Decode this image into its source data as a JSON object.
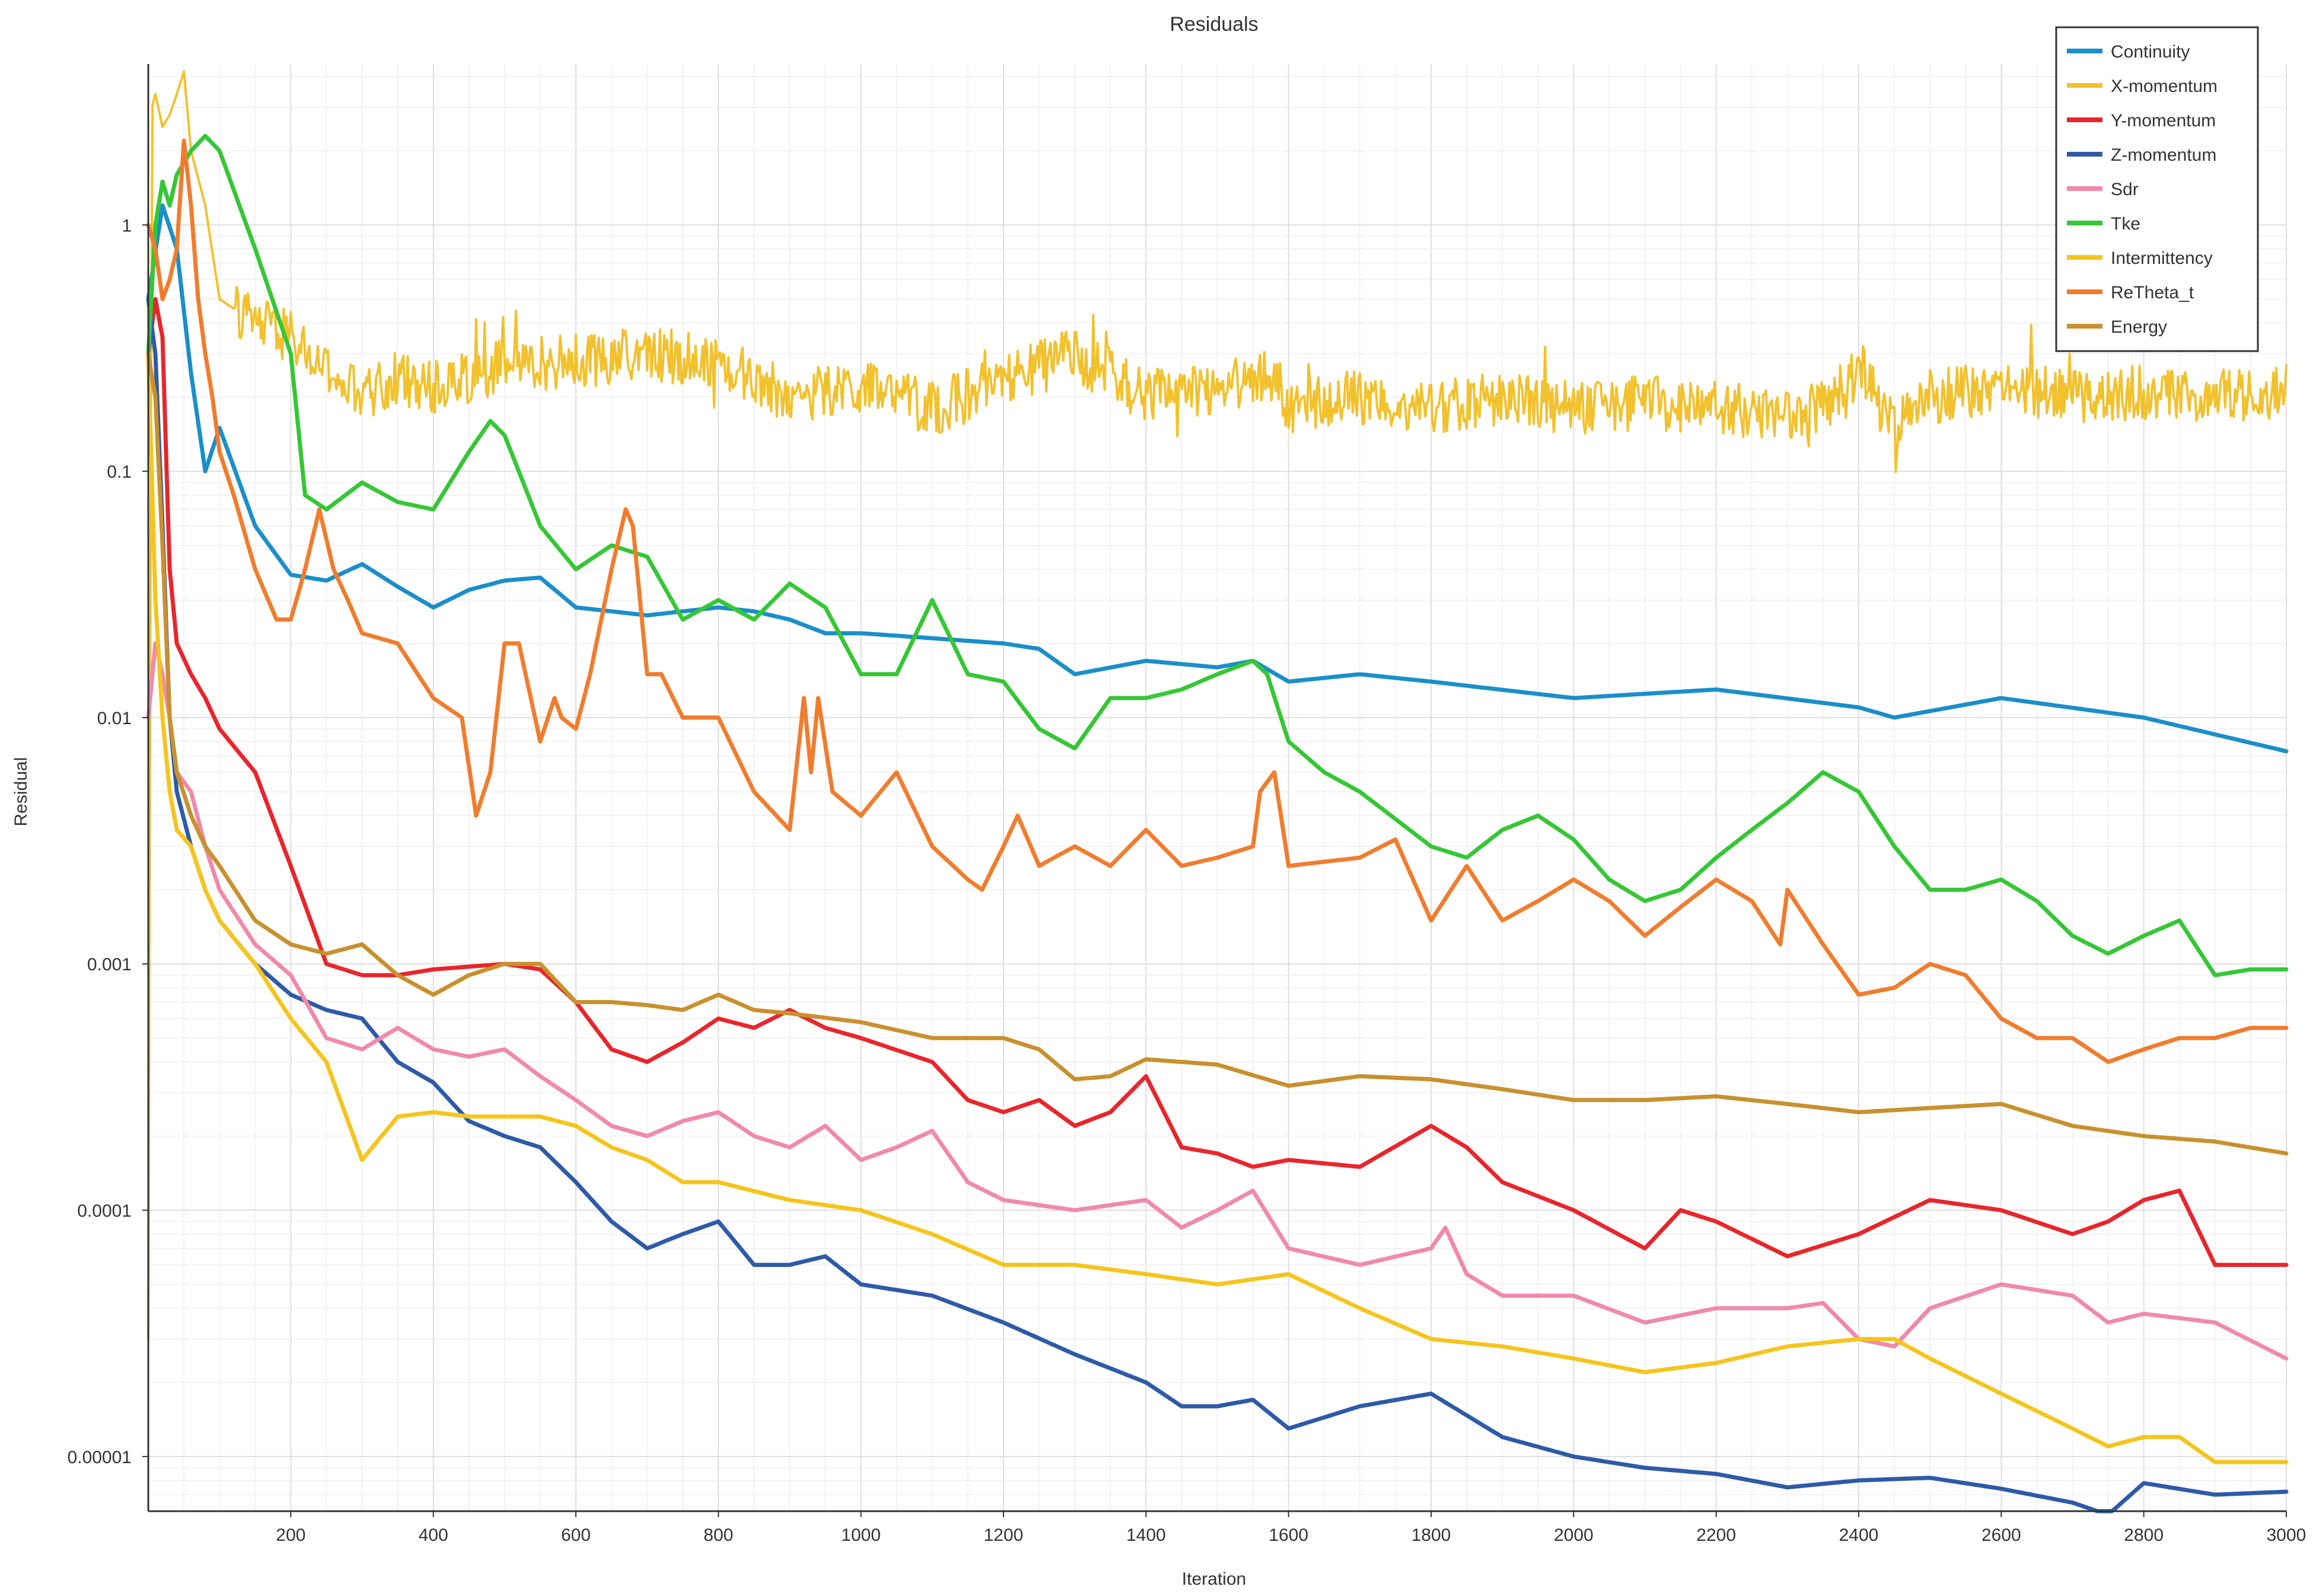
{
  "chart_data": {
    "type": "line",
    "title": "Residuals",
    "xlabel": "Iteration",
    "ylabel": "Residual",
    "xlim": [
      0,
      3000
    ],
    "ylim": [
      6e-06,
      4.5
    ],
    "yscale": "log",
    "grid": true,
    "legend_position": "top-right",
    "x_ticks": [
      200,
      400,
      600,
      800,
      1000,
      1200,
      1400,
      1600,
      1800,
      2000,
      2200,
      2400,
      2600,
      2800,
      3000
    ],
    "x_tick_labels": [
      "200",
      "400",
      "600",
      "800",
      "1000",
      "1200",
      "1400",
      "1600",
      "1800",
      "2000",
      "2200",
      "2400",
      "2600",
      "2800",
      "3000"
    ],
    "y_ticks": [
      1,
      0.1,
      0.01,
      0.001,
      0.0001,
      1e-05
    ],
    "y_tick_labels": [
      "1",
      "0.1",
      "0.01",
      "0.001",
      "0.0001",
      "0.00001"
    ],
    "series": [
      {
        "name": "Continuity",
        "color": "#1a8fc9",
        "x": [
          0,
          20,
          40,
          60,
          80,
          100,
          150,
          200,
          250,
          300,
          350,
          400,
          450,
          500,
          550,
          600,
          650,
          700,
          750,
          800,
          850,
          900,
          950,
          1000,
          1100,
          1200,
          1250,
          1300,
          1400,
          1500,
          1550,
          1600,
          1700,
          1800,
          2000,
          2200,
          2400,
          2450,
          2600,
          2800,
          3000
        ],
        "values": [
          0.5,
          1.2,
          0.8,
          0.25,
          0.1,
          0.15,
          0.06,
          0.038,
          0.036,
          0.042,
          0.034,
          0.028,
          0.033,
          0.036,
          0.037,
          0.028,
          0.027,
          0.026,
          0.027,
          0.028,
          0.027,
          0.025,
          0.022,
          0.022,
          0.021,
          0.02,
          0.019,
          0.015,
          0.017,
          0.016,
          0.017,
          0.014,
          0.015,
          0.014,
          0.012,
          0.013,
          0.011,
          0.01,
          0.012,
          0.01,
          0.0073
        ]
      },
      {
        "name": "X-momentum",
        "color": "#f2c12e",
        "noise": 0.22,
        "x": [
          0,
          5,
          10,
          20,
          30,
          40,
          50,
          60,
          80,
          100,
          150,
          200,
          250,
          300,
          350,
          400,
          500,
          600,
          700,
          800,
          900,
          1000,
          1100,
          1200,
          1300,
          1400,
          1500,
          1580,
          1600,
          1700,
          1800,
          1900,
          2000,
          2100,
          2200,
          2300,
          2380,
          2400,
          2450,
          2500,
          2600,
          2700,
          2800,
          2900,
          3000
        ],
        "values": [
          3e-05,
          3,
          3.4,
          2.5,
          2.8,
          3.4,
          4.2,
          2,
          1.2,
          0.5,
          0.4,
          0.35,
          0.25,
          0.2,
          0.24,
          0.22,
          0.27,
          0.28,
          0.3,
          0.28,
          0.2,
          0.22,
          0.18,
          0.23,
          0.3,
          0.2,
          0.22,
          0.25,
          0.18,
          0.2,
          0.18,
          0.2,
          0.18,
          0.19,
          0.18,
          0.17,
          0.2,
          0.27,
          0.15,
          0.2,
          0.22,
          0.2,
          0.21,
          0.2,
          0.21
        ]
      },
      {
        "name": "Y-momentum",
        "color": "#e8262c",
        "x": [
          0,
          10,
          20,
          30,
          40,
          60,
          80,
          100,
          150,
          200,
          250,
          300,
          350,
          400,
          500,
          550,
          600,
          650,
          700,
          750,
          800,
          850,
          900,
          950,
          1000,
          1100,
          1150,
          1200,
          1250,
          1300,
          1350,
          1400,
          1450,
          1500,
          1550,
          1600,
          1700,
          1800,
          1850,
          1900,
          2000,
          2100,
          2150,
          2200,
          2300,
          2400,
          2500,
          2600,
          2700,
          2750,
          2800,
          2850,
          2900,
          3000
        ],
        "values": [
          0.3,
          0.5,
          0.35,
          0.04,
          0.02,
          0.015,
          0.012,
          0.009,
          0.006,
          0.0025,
          0.001,
          0.0009,
          0.0009,
          0.00095,
          0.001,
          0.00095,
          0.0007,
          0.00045,
          0.0004,
          0.00048,
          0.0006,
          0.00055,
          0.00065,
          0.00055,
          0.0005,
          0.0004,
          0.00028,
          0.00025,
          0.00028,
          0.00022,
          0.00025,
          0.00035,
          0.00018,
          0.00017,
          0.00015,
          0.00016,
          0.00015,
          0.00022,
          0.00018,
          0.00013,
          0.0001,
          7e-05,
          0.0001,
          9e-05,
          6.5e-05,
          8e-05,
          0.00011,
          0.0001,
          8e-05,
          9e-05,
          0.00011,
          0.00012,
          6e-05,
          6e-05
        ]
      },
      {
        "name": "Z-momentum",
        "color": "#2e5aa8",
        "x": [
          0,
          10,
          20,
          30,
          40,
          60,
          80,
          100,
          150,
          200,
          250,
          300,
          350,
          400,
          450,
          500,
          550,
          600,
          650,
          700,
          750,
          800,
          850,
          900,
          950,
          1000,
          1100,
          1200,
          1300,
          1400,
          1450,
          1500,
          1550,
          1600,
          1700,
          1800,
          1900,
          2000,
          2100,
          2200,
          2300,
          2400,
          2500,
          2600,
          2700,
          2750,
          2800,
          2900,
          3000
        ],
        "values": [
          0.5,
          0.3,
          0.06,
          0.01,
          0.005,
          0.003,
          0.002,
          0.0015,
          0.001,
          0.00075,
          0.00065,
          0.0006,
          0.0004,
          0.00033,
          0.00023,
          0.0002,
          0.00018,
          0.00013,
          9e-05,
          7e-05,
          8e-05,
          9e-05,
          6e-05,
          6e-05,
          6.5e-05,
          5e-05,
          4.5e-05,
          3.5e-05,
          2.6e-05,
          2e-05,
          1.6e-05,
          1.6e-05,
          1.7e-05,
          1.3e-05,
          1.6e-05,
          1.8e-05,
          1.2e-05,
          1e-05,
          9e-06,
          8.5e-06,
          7.5e-06,
          8e-06,
          8.2e-06,
          7.4e-06,
          6.5e-06,
          5.8e-06,
          7.8e-06,
          7e-06,
          7.2e-06
        ]
      },
      {
        "name": "Sdr",
        "color": "#f08aaa",
        "x": [
          0,
          10,
          20,
          30,
          40,
          60,
          80,
          100,
          150,
          200,
          250,
          300,
          350,
          400,
          450,
          500,
          550,
          600,
          650,
          700,
          750,
          800,
          850,
          900,
          950,
          1000,
          1050,
          1100,
          1150,
          1200,
          1300,
          1400,
          1450,
          1500,
          1550,
          1600,
          1700,
          1800,
          1820,
          1850,
          1900,
          2000,
          2100,
          2200,
          2300,
          2350,
          2400,
          2450,
          2500,
          2600,
          2700,
          2750,
          2800,
          2900,
          3000
        ],
        "values": [
          0.01,
          0.02,
          0.015,
          0.01,
          0.006,
          0.005,
          0.003,
          0.002,
          0.0012,
          0.0009,
          0.0005,
          0.00045,
          0.00055,
          0.00045,
          0.00042,
          0.00045,
          0.00035,
          0.00028,
          0.00022,
          0.0002,
          0.00023,
          0.00025,
          0.0002,
          0.00018,
          0.00022,
          0.00016,
          0.00018,
          0.00021,
          0.00013,
          0.00011,
          0.0001,
          0.00011,
          8.5e-05,
          0.0001,
          0.00012,
          7e-05,
          6e-05,
          7e-05,
          8.5e-05,
          5.5e-05,
          4.5e-05,
          4.5e-05,
          3.5e-05,
          4e-05,
          4e-05,
          4.2e-05,
          3e-05,
          2.8e-05,
          4e-05,
          5e-05,
          4.5e-05,
          3.5e-05,
          3.8e-05,
          3.5e-05,
          2.5e-05
        ]
      },
      {
        "name": "Tke",
        "color": "#35c735",
        "x": [
          0,
          10,
          20,
          30,
          40,
          60,
          80,
          100,
          150,
          200,
          220,
          250,
          300,
          350,
          400,
          450,
          480,
          500,
          550,
          600,
          650,
          700,
          750,
          800,
          850,
          900,
          950,
          1000,
          1050,
          1100,
          1150,
          1200,
          1250,
          1300,
          1350,
          1400,
          1450,
          1500,
          1550,
          1570,
          1600,
          1650,
          1700,
          1800,
          1850,
          1900,
          1950,
          2000,
          2050,
          2100,
          2150,
          2200,
          2250,
          2300,
          2350,
          2400,
          2450,
          2500,
          2550,
          2600,
          2650,
          2700,
          2750,
          2800,
          2850,
          2900,
          2950,
          3000
        ],
        "values": [
          0.3,
          1,
          1.5,
          1.2,
          1.6,
          2,
          2.3,
          2,
          0.8,
          0.3,
          0.08,
          0.07,
          0.09,
          0.075,
          0.07,
          0.12,
          0.16,
          0.14,
          0.06,
          0.04,
          0.05,
          0.045,
          0.025,
          0.03,
          0.025,
          0.035,
          0.028,
          0.015,
          0.015,
          0.03,
          0.015,
          0.014,
          0.009,
          0.0075,
          0.012,
          0.012,
          0.013,
          0.015,
          0.017,
          0.015,
          0.008,
          0.006,
          0.005,
          0.003,
          0.0027,
          0.0035,
          0.004,
          0.0032,
          0.0022,
          0.0018,
          0.002,
          0.0027,
          0.0035,
          0.0045,
          0.006,
          0.005,
          0.003,
          0.002,
          0.002,
          0.0022,
          0.0018,
          0.0013,
          0.0011,
          0.0013,
          0.0015,
          0.0009,
          0.00095,
          0.00095
        ]
      },
      {
        "name": "Intermittency",
        "color": "#f5c51e",
        "x": [
          0,
          10,
          20,
          30,
          40,
          60,
          80,
          100,
          150,
          200,
          250,
          300,
          350,
          400,
          450,
          500,
          550,
          600,
          650,
          700,
          750,
          800,
          900,
          1000,
          1100,
          1200,
          1300,
          1400,
          1500,
          1600,
          1700,
          1800,
          1900,
          2000,
          2100,
          2200,
          2300,
          2400,
          2450,
          2500,
          2600,
          2700,
          2750,
          2800,
          2850,
          2900,
          3000
        ],
        "values": [
          0.3,
          0.03,
          0.01,
          0.005,
          0.0035,
          0.003,
          0.002,
          0.0015,
          0.001,
          0.0006,
          0.0004,
          0.00016,
          0.00024,
          0.00025,
          0.00024,
          0.00024,
          0.00024,
          0.00022,
          0.00018,
          0.00016,
          0.00013,
          0.00013,
          0.00011,
          0.0001,
          8e-05,
          6e-05,
          6e-05,
          5.5e-05,
          5e-05,
          5.5e-05,
          4e-05,
          3e-05,
          2.8e-05,
          2.5e-05,
          2.2e-05,
          2.4e-05,
          2.8e-05,
          3e-05,
          3e-05,
          2.5e-05,
          1.8e-05,
          1.3e-05,
          1.1e-05,
          1.2e-05,
          1.2e-05,
          9.5e-06,
          9.5e-06
        ]
      },
      {
        "name": "ReTheta_t",
        "color": "#f07d2e",
        "x": [
          0,
          10,
          20,
          30,
          40,
          50,
          60,
          70,
          80,
          90,
          100,
          120,
          150,
          180,
          200,
          220,
          240,
          260,
          280,
          300,
          350,
          400,
          440,
          460,
          480,
          500,
          520,
          550,
          570,
          580,
          600,
          620,
          650,
          670,
          680,
          700,
          720,
          750,
          800,
          850,
          900,
          920,
          930,
          940,
          960,
          1000,
          1050,
          1100,
          1150,
          1170,
          1200,
          1220,
          1250,
          1300,
          1350,
          1400,
          1450,
          1500,
          1550,
          1560,
          1580,
          1600,
          1700,
          1750,
          1800,
          1850,
          1900,
          1950,
          2000,
          2050,
          2100,
          2150,
          2200,
          2250,
          2290,
          2300,
          2350,
          2400,
          2450,
          2500,
          2550,
          2600,
          2650,
          2700,
          2750,
          2800,
          2850,
          2900,
          2950,
          3000
        ],
        "values": [
          1,
          0.8,
          0.5,
          0.6,
          0.8,
          2.2,
          1.2,
          0.5,
          0.3,
          0.2,
          0.12,
          0.08,
          0.04,
          0.025,
          0.025,
          0.04,
          0.07,
          0.04,
          0.03,
          0.022,
          0.02,
          0.012,
          0.01,
          0.004,
          0.006,
          0.02,
          0.02,
          0.008,
          0.012,
          0.01,
          0.009,
          0.015,
          0.04,
          0.07,
          0.06,
          0.015,
          0.015,
          0.01,
          0.01,
          0.005,
          0.0035,
          0.012,
          0.006,
          0.012,
          0.005,
          0.004,
          0.006,
          0.003,
          0.0022,
          0.002,
          0.003,
          0.004,
          0.0025,
          0.003,
          0.0025,
          0.0035,
          0.0025,
          0.0027,
          0.003,
          0.005,
          0.006,
          0.0025,
          0.0027,
          0.0032,
          0.0015,
          0.0025,
          0.0015,
          0.0018,
          0.0022,
          0.0018,
          0.0013,
          0.0017,
          0.0022,
          0.0018,
          0.0012,
          0.002,
          0.0012,
          0.00075,
          0.0008,
          0.001,
          0.0009,
          0.0006,
          0.0005,
          0.0005,
          0.0004,
          0.00045,
          0.0005,
          0.0005,
          0.00055,
          0.00055
        ]
      },
      {
        "name": "Energy",
        "color": "#c8912e",
        "x": [
          0,
          10,
          20,
          30,
          40,
          60,
          80,
          100,
          150,
          200,
          250,
          300,
          350,
          400,
          450,
          500,
          550,
          600,
          650,
          700,
          750,
          800,
          850,
          900,
          1000,
          1100,
          1200,
          1250,
          1300,
          1350,
          1400,
          1450,
          1500,
          1600,
          1700,
          1800,
          1900,
          2000,
          2100,
          2200,
          2300,
          2400,
          2500,
          2600,
          2700,
          2800,
          2900,
          3000
        ],
        "values": [
          0.3,
          0.2,
          0.05,
          0.01,
          0.006,
          0.004,
          0.003,
          0.0025,
          0.0015,
          0.0012,
          0.0011,
          0.0012,
          0.0009,
          0.00075,
          0.0009,
          0.001,
          0.001,
          0.0007,
          0.0007,
          0.00068,
          0.00065,
          0.00075,
          0.00065,
          0.00063,
          0.00058,
          0.0005,
          0.0005,
          0.00045,
          0.00034,
          0.00035,
          0.00041,
          0.0004,
          0.00039,
          0.00032,
          0.00035,
          0.00034,
          0.00031,
          0.00028,
          0.00028,
          0.00029,
          0.00027,
          0.00025,
          0.00026,
          0.00027,
          0.00022,
          0.0002,
          0.00019,
          0.00017
        ]
      }
    ]
  }
}
